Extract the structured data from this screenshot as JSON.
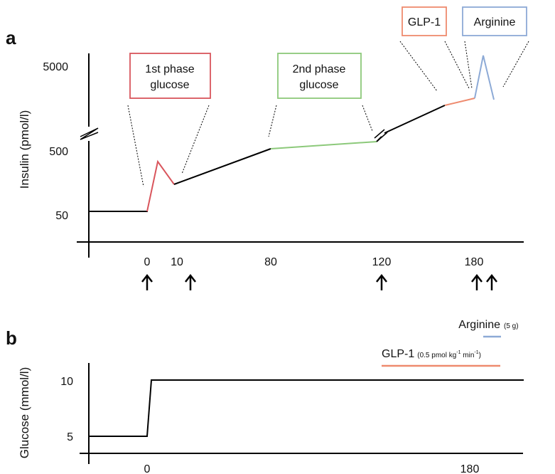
{
  "panel_a": {
    "label": "a",
    "ylabel": "Insulin (pmol/l)",
    "yticks": [
      "5000",
      "500",
      "50"
    ],
    "xticks": [
      "0",
      "10",
      "80",
      "120",
      "180"
    ],
    "boxes": {
      "first_phase": {
        "line1": "1st phase",
        "line2": "glucose"
      },
      "second_phase": {
        "line1": "2nd phase",
        "line2": "glucose"
      },
      "glp1": "GLP-1",
      "arginine": "Arginine"
    },
    "arrow_times": [
      0,
      12,
      120,
      180,
      185
    ]
  },
  "panel_b": {
    "label": "b",
    "ylabel": "Glucose (mmol/l)",
    "yticks": [
      "10",
      "5"
    ],
    "xticks": [
      "0",
      "180"
    ],
    "arginine_label": "Arginine",
    "arginine_dose": "(5 g)",
    "glp1_label": "GLP-1",
    "glp1_dose_prefix": "(0.5 pmol kg",
    "glp1_dose_exp1": "-1",
    "glp1_dose_mid": " min",
    "glp1_dose_exp2": "-1",
    "glp1_dose_suffix": ")"
  },
  "colors": {
    "first_phase": "#d9555c",
    "second_phase": "#8cc97a",
    "glp1": "#ee8a6e",
    "arginine": "#8daad6",
    "baseline": "#000000"
  }
}
